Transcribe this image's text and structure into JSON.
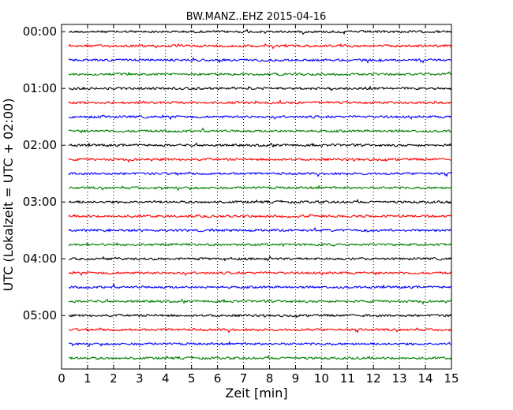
{
  "chart_data": {
    "type": "line",
    "title": "BW.MANZ..EHZ 2015-04-16",
    "xlabel": "Zeit  [min]",
    "ylabel": "UTC (Lokalzeit = UTC + 02:00)",
    "xlim": [
      0,
      15
    ],
    "x_ticks": [
      "0",
      "1",
      "2",
      "3",
      "4",
      "5",
      "6",
      "7",
      "8",
      "9",
      "10",
      "11",
      "12",
      "13",
      "14",
      "15"
    ],
    "y_tick_labels": [
      "00:00",
      "01:00",
      "02:00",
      "03:00",
      "04:00",
      "05:00"
    ],
    "grid": "vertical dotted lines at each minute",
    "colors": [
      "#000000",
      "#ff0000",
      "#0000ff",
      "#008000"
    ],
    "trace_interval_min": 15,
    "series": [
      {
        "start": "00:00",
        "color": "#000000"
      },
      {
        "start": "00:15",
        "color": "#ff0000"
      },
      {
        "start": "00:30",
        "color": "#0000ff"
      },
      {
        "start": "00:45",
        "color": "#008000"
      },
      {
        "start": "01:00",
        "color": "#000000"
      },
      {
        "start": "01:15",
        "color": "#ff0000"
      },
      {
        "start": "01:30",
        "color": "#0000ff"
      },
      {
        "start": "01:45",
        "color": "#008000"
      },
      {
        "start": "02:00",
        "color": "#000000"
      },
      {
        "start": "02:15",
        "color": "#ff0000"
      },
      {
        "start": "02:30",
        "color": "#0000ff"
      },
      {
        "start": "02:45",
        "color": "#008000"
      },
      {
        "start": "03:00",
        "color": "#000000"
      },
      {
        "start": "03:15",
        "color": "#ff0000"
      },
      {
        "start": "03:30",
        "color": "#0000ff"
      },
      {
        "start": "03:45",
        "color": "#008000"
      },
      {
        "start": "04:00",
        "color": "#000000"
      },
      {
        "start": "04:15",
        "color": "#ff0000"
      },
      {
        "start": "04:30",
        "color": "#0000ff"
      },
      {
        "start": "04:45",
        "color": "#008000"
      },
      {
        "start": "05:00",
        "color": "#000000"
      },
      {
        "start": "05:15",
        "color": "#ff0000"
      },
      {
        "start": "05:30",
        "color": "#0000ff"
      },
      {
        "start": "05:45",
        "color": "#008000"
      }
    ]
  }
}
